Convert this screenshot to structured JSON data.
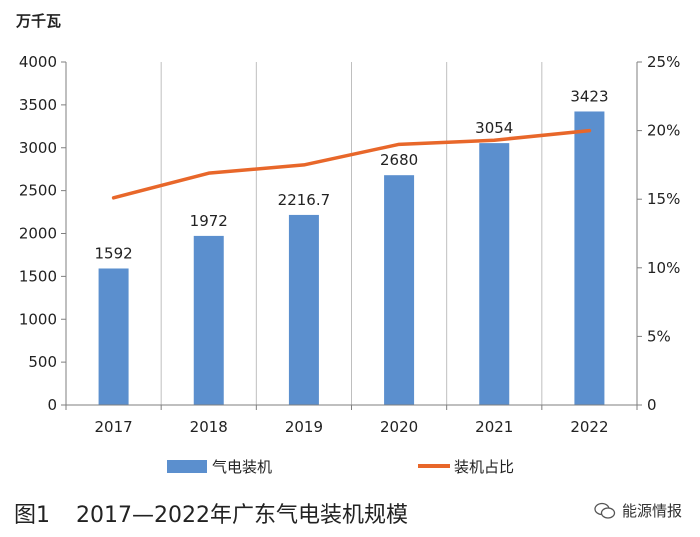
{
  "chart_data": {
    "type": "bar",
    "categories": [
      "2017",
      "2018",
      "2019",
      "2020",
      "2021",
      "2022"
    ],
    "series": [
      {
        "name": "气电装机",
        "type": "bar",
        "axis": "left",
        "values": [
          1592,
          1972,
          2216.7,
          2680,
          3054,
          3423
        ],
        "labels": [
          "1592",
          "1972",
          "2216.7",
          "2680",
          "3054",
          "3423"
        ],
        "color": "#5b8fce"
      },
      {
        "name": "装机占比",
        "type": "line",
        "axis": "right",
        "values": [
          15.1,
          16.9,
          17.5,
          19.0,
          19.3,
          20.0
        ],
        "color": "#e8672a"
      }
    ],
    "y_left": {
      "unit": "万千瓦",
      "ylim": [
        0,
        4000
      ],
      "ticks": [
        "0",
        "500",
        "1000",
        "1500",
        "2000",
        "2500",
        "3000",
        "3500",
        "4000"
      ]
    },
    "y_right": {
      "ylim": [
        0,
        25
      ],
      "ticks": [
        "0",
        "5%",
        "10%",
        "15%",
        "20%",
        "25%"
      ]
    },
    "grid": "vertical",
    "legend": "bottom"
  },
  "caption": {
    "number": "图1",
    "title": "2017—2022年广东气电装机规模"
  },
  "watermark": {
    "text": "能源情报"
  }
}
